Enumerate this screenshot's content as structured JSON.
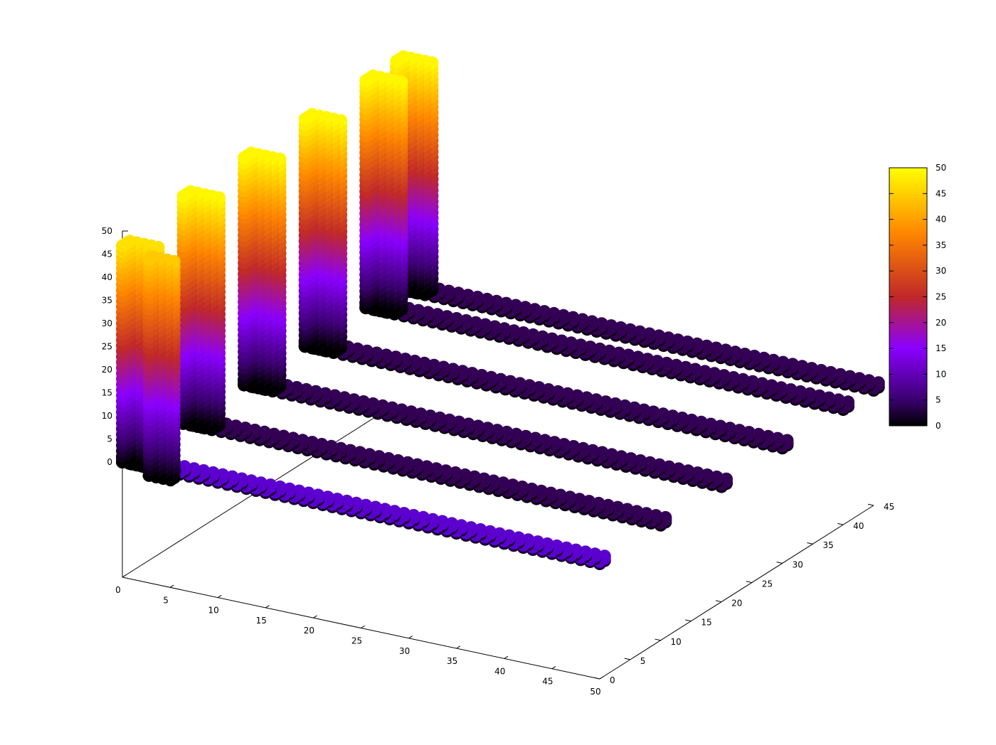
{
  "chart_data": {
    "type": "scatter",
    "subtype": "3d-points-pm3d-colored",
    "title": "",
    "xlabel": "",
    "ylabel": "",
    "zlabel": "",
    "grid": false,
    "legend": "none",
    "xlim": [
      0,
      50
    ],
    "ylim": [
      0,
      45
    ],
    "zlim": [
      0,
      50
    ],
    "x_ticks": [
      "0",
      "5",
      "10",
      "15",
      "20",
      "25",
      "30",
      "35",
      "40",
      "45",
      "50"
    ],
    "y_ticks": [
      "0",
      "5",
      "10",
      "15",
      "20",
      "25",
      "30",
      "35",
      "40",
      "45"
    ],
    "z_ticks": [
      "0",
      "5",
      "10",
      "15",
      "20",
      "25",
      "30",
      "35",
      "40",
      "45",
      "50"
    ],
    "colorbar": {
      "range": [
        0,
        50
      ],
      "ticks": [
        "0",
        "5",
        "10",
        "15",
        "20",
        "25",
        "30",
        "35",
        "40",
        "45",
        "50"
      ],
      "palette": [
        "#000000",
        "#3d0070",
        "#8a00ff",
        "#c03838",
        "#ff8800",
        "#ffff00"
      ]
    },
    "series": [
      {
        "y": 0,
        "x_range": [
          0,
          50
        ],
        "wall_x_range": [
          0,
          3
        ],
        "wall_height": 47,
        "floor_z": 0.5,
        "floor_color": "#5c00d0"
      },
      {
        "y": 0,
        "x_range": [
          0,
          3
        ],
        "wall_x_range": [
          0,
          3
        ],
        "wall_height": 50,
        "floor_z": 0.5,
        "note": ""
      },
      {
        "y": 10,
        "x_range": [
          0,
          50
        ],
        "wall_x_range": [
          0,
          3
        ],
        "wall_height": 50,
        "floor_z": 0.5,
        "floor_color": "#330055"
      },
      {
        "y": 20,
        "x_range": [
          0,
          50
        ],
        "wall_x_range": [
          0,
          3
        ],
        "wall_height": 50,
        "floor_z": 0.5,
        "floor_color": "#330055"
      },
      {
        "y": 30,
        "x_range": [
          0,
          50
        ],
        "wall_x_range": [
          0,
          3
        ],
        "wall_height": 50,
        "floor_z": 0.5,
        "floor_color": "#330055"
      },
      {
        "y": 40,
        "x_range": [
          0,
          50
        ],
        "wall_x_range": [
          0,
          3
        ],
        "wall_height": 50,
        "floor_z": 0.5,
        "floor_color": "#330055"
      },
      {
        "y": 45,
        "x_range": [
          0,
          50
        ],
        "wall_x_range": [
          0,
          3
        ],
        "wall_height": 50,
        "floor_z": 0.5,
        "floor_color": "#330055"
      }
    ]
  }
}
